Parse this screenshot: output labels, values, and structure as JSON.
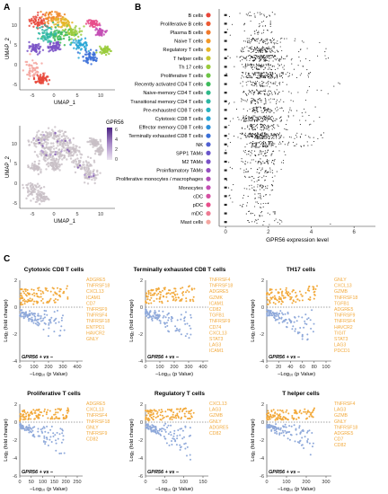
{
  "panels": {
    "a": {
      "label": "A"
    },
    "b": {
      "label": "B"
    },
    "c": {
      "label": "C"
    }
  },
  "colors": {
    "up": "#F2A93B",
    "down": "#8FA9DA",
    "umap_grey": "#D9D6D4",
    "umap_grey_dot": "#C8BFC6",
    "violet_high": "#5A2E8C",
    "violet_low": "#E9E0F2"
  },
  "umap_top": {
    "xlabel": "UMAP_1",
    "ylabel": "UMAP_2",
    "xticks": [
      "-5",
      "0",
      "5",
      "10"
    ],
    "yticks": [
      "10",
      "5",
      "0",
      "-5"
    ],
    "cluster_colors": [
      "#E8463A",
      "#F08A2C",
      "#E5B628",
      "#9ACB3C",
      "#3DBB5C",
      "#2EB7A4",
      "#2AA7D6",
      "#3A6FD8",
      "#7A52C7",
      "#C44FB5",
      "#E84E8B",
      "#F4A6A0"
    ]
  },
  "umap_bottom": {
    "xlabel": "UMAP_1",
    "ylabel": "UMAP_2",
    "xticks": [
      "-5",
      "0",
      "5",
      "10"
    ],
    "yticks": [
      "10",
      "5",
      "0",
      "-5"
    ],
    "legend_title": "GPR56",
    "legend_ticks": [
      "6",
      "4",
      "2",
      "0"
    ]
  },
  "chart_data": [
    {
      "type": "scatter",
      "title": "",
      "xlabel": "GPR56 expression level",
      "ylabel": "",
      "xlim": [
        -0.3,
        7
      ],
      "xticks": [
        "0",
        "2",
        "4",
        "6"
      ],
      "xtick_values": [
        0,
        2,
        4,
        6
      ],
      "categories": [
        "B cells",
        "Proliferative B cells",
        "Plasma B cells",
        "Naive T cells",
        "Regulatory T cells",
        "T helper cells",
        "Th 17 cells",
        "Proliferative T cells",
        "Recently activated CD4 T cells",
        "Naive-memory CD4 T cells",
        "Transitional memory CD4 T cells",
        "Pre-exhausted CD8 T cells",
        "Cytotoxic CD8 T cells",
        "Effector memory CD8 T cells",
        "Terminally exhausted CD8 T cells",
        "NK",
        "SPP1 TAMs",
        "M2 TAMs",
        "Proinflamatory TAMs",
        "Proliferative monocytes / macrophages",
        "Monocytes",
        "cDC",
        "pDC",
        "mDC",
        "Mast cells"
      ],
      "category_colors": [
        "#E8463A",
        "#EC5A34",
        "#F07A2C",
        "#F29A2A",
        "#E8B428",
        "#C7C630",
        "#9ACB3C",
        "#6DC446",
        "#3DBB5C",
        "#2FB98A",
        "#2EB7A4",
        "#2AB2C0",
        "#2AA7D6",
        "#2F91DA",
        "#3A6FD8",
        "#5060D2",
        "#6A55CB",
        "#7A52C7",
        "#9550C0",
        "#B04FB8",
        "#C44FB5",
        "#D44FA2",
        "#E84E8B",
        "#EE7A92",
        "#F4A6A0"
      ],
      "density": [
        0.08,
        0.05,
        0.05,
        0.35,
        0.55,
        0.75,
        0.45,
        0.85,
        0.3,
        0.35,
        0.3,
        0.4,
        0.7,
        0.4,
        1.0,
        0.55,
        0.2,
        0.2,
        0.15,
        0.08,
        0.15,
        0.06,
        0.05,
        0.06,
        0.06
      ],
      "spread": [
        2.3,
        2.1,
        5.5,
        4.8,
        4.9,
        4.8,
        4.6,
        4.0,
        6.0,
        5.2,
        4.0,
        4.3,
        4.7,
        4.5,
        4.9,
        4.4,
        3.0,
        2.7,
        2.6,
        2.3,
        2.2,
        2.1,
        2.0,
        2.3,
        5.6
      ]
    },
    {
      "type": "scatter",
      "title": "Cytotoxic CD8 T cells",
      "xlabel": "−Log₁₀ (p Value)",
      "ylabel": "Log₂ (fold change)",
      "xlim": [
        0,
        400
      ],
      "ylim": [
        -4,
        2
      ],
      "xticks": [
        0,
        100,
        200,
        300,
        400
      ],
      "yticks": [
        2,
        0,
        -2,
        -4
      ],
      "comparison": "GPR56 + vs –",
      "genes": [
        "ADGRE5",
        "TNFRSF18",
        "CXCL13",
        "ICAM1",
        "CD7",
        "TNFRSF9",
        "TNFRSF4",
        "TNFRSF18",
        "ENTPD1",
        "HAVCR2",
        "GNLY"
      ]
    },
    {
      "type": "scatter",
      "title": "Terminally exhausted CD8 T cells",
      "xlabel": "−Log₁₀ (p Value)",
      "ylabel": "Log₂ (fold change)",
      "xlim": [
        0,
        400
      ],
      "ylim": [
        -4,
        2
      ],
      "xticks": [
        0,
        100,
        200,
        300,
        400
      ],
      "yticks": [
        2,
        0,
        -2,
        -4
      ],
      "comparison": "GPR56 + vs –",
      "genes": [
        "TNFRSF4",
        "TNFRSF18",
        "ADGRE5",
        "GZMK",
        "ICAM1",
        "CD82",
        "TGFB1",
        "TNFRSF9",
        "CD74",
        "CXCL13",
        "STAT3",
        "LAG3",
        "ICAM1"
      ]
    },
    {
      "type": "scatter",
      "title": "TH17 cells",
      "xlabel": "−Log₁₀ (p Value)",
      "ylabel": "Log₂ (fold change)",
      "xlim": [
        0,
        100
      ],
      "ylim": [
        -4,
        2
      ],
      "xticks": [
        0,
        20,
        40,
        60,
        80,
        100
      ],
      "yticks": [
        2,
        0,
        -2,
        -4
      ],
      "comparison": "GPR56 + vs –",
      "genes": [
        "GNLY",
        "CXCL13",
        "GZMB",
        "TNFRSF18",
        "TGFB1",
        "ADGRE5",
        "TNFRSF9",
        "TNFRSF4",
        "HAVCR2",
        "TIGIT",
        "STAT3",
        "LAG3",
        "PDCD1"
      ]
    },
    {
      "type": "scatter",
      "title": "Proliferative T cells",
      "xlabel": "−Log₁₀ (p Value)",
      "ylabel": "Log₂ (fold change)",
      "xlim": [
        0,
        250
      ],
      "ylim": [
        -6,
        2
      ],
      "xticks": [
        0,
        50,
        100,
        150,
        200,
        250
      ],
      "yticks": [
        2,
        0,
        -2,
        -4,
        -6
      ],
      "comparison": "GPR56 + vs –",
      "genes": [
        "ADGRE5",
        "CXCL13",
        "TNFRSF4",
        "TNFRSF18",
        "GNLY",
        "TNFRSF9",
        "CD82"
      ]
    },
    {
      "type": "scatter",
      "title": "Regulatory T cells",
      "xlabel": "−Log₁₀ (p Value)",
      "ylabel": "Log₂ (fold change)",
      "xlim": [
        0,
        150
      ],
      "ylim": [
        -6,
        2
      ],
      "xticks": [
        0,
        50,
        100,
        150
      ],
      "yticks": [
        2,
        0,
        -2,
        -4,
        -6
      ],
      "comparison": "GPR56 + vs –",
      "genes": [
        "CXCL13",
        "LAG3",
        "GZMB",
        "GNLY",
        "ADGRE5",
        "CD82"
      ]
    },
    {
      "type": "scatter",
      "title": "T helper cells",
      "xlabel": "−Log₁₀ (p Value)",
      "ylabel": "Log₂ (fold change)",
      "xlim": [
        0,
        300
      ],
      "ylim": [
        -6,
        2
      ],
      "xticks": [
        0,
        100,
        200,
        300
      ],
      "yticks": [
        2,
        0,
        -2,
        -4,
        -6
      ],
      "comparison": "GPR56 + vs –",
      "genes": [
        "TNFRSF4",
        "LAG3",
        "GZMB",
        "GNLY",
        "TNFRSF18",
        "ADGRE5",
        "CD7",
        "CD82"
      ]
    }
  ]
}
